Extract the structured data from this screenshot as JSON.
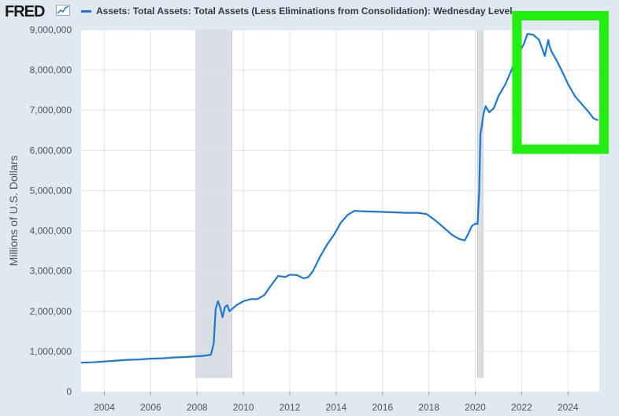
{
  "header": {
    "logo_text": "FRED",
    "legend_label": "Assets: Total Assets: Total Assets (Less Eliminations from Consolidation): Wednesday Level"
  },
  "colors": {
    "line": "#1f77d4",
    "recession": "#d9dee4",
    "highlight": "#22ee11",
    "grid": "#dfe3e8",
    "background": "#e1e9f0"
  },
  "chart_data": {
    "type": "line",
    "title": "",
    "xlabel": "",
    "ylabel": "Millions of U.S. Dollars",
    "xlim": [
      2003.0,
      2025.35
    ],
    "ylim": [
      0,
      9000000
    ],
    "grid": true,
    "x_ticks": [
      "2004",
      "2006",
      "2008",
      "2010",
      "2012",
      "2014",
      "2016",
      "2018",
      "2020",
      "2022",
      "2024"
    ],
    "y_ticks": [
      "0",
      "1,000,000",
      "2,000,000",
      "3,000,000",
      "4,000,000",
      "5,000,000",
      "6,000,000",
      "7,000,000",
      "8,000,000",
      "9,000,000"
    ],
    "recessions": [
      [
        2007.96,
        2009.5
      ],
      [
        2020.1,
        2020.33
      ]
    ],
    "highlight_box": {
      "x": [
        2022.0,
        2025.35
      ],
      "y": [
        6150000,
        9000000
      ],
      "color": "green"
    },
    "series": [
      {
        "x": [
          2003.0,
          2003.5,
          2004.0,
          2004.5,
          2005.0,
          2005.5,
          2006.0,
          2006.5,
          2007.0,
          2007.5,
          2008.0,
          2008.3,
          2008.6,
          2008.72,
          2008.8,
          2008.9,
          2009.0,
          2009.1,
          2009.2,
          2009.3,
          2009.4,
          2009.5,
          2009.7,
          2010.0,
          2010.3,
          2010.6,
          2010.9,
          2011.2,
          2011.5,
          2011.8,
          2012.0,
          2012.3,
          2012.6,
          2012.8,
          2013.0,
          2013.3,
          2013.6,
          2013.9,
          2014.2,
          2014.5,
          2014.8,
          2015.0,
          2015.5,
          2016.0,
          2016.5,
          2017.0,
          2017.5,
          2017.9,
          2018.3,
          2018.7,
          2019.0,
          2019.3,
          2019.55,
          2019.7,
          2019.85,
          2020.0,
          2020.1,
          2020.17,
          2020.22,
          2020.28,
          2020.35,
          2020.45,
          2020.6,
          2020.8,
          2021.0,
          2021.3,
          2021.6,
          2021.9,
          2022.1,
          2022.25,
          2022.5,
          2022.75,
          2023.0,
          2023.15,
          2023.2,
          2023.3,
          2023.5,
          2023.8,
          2024.0,
          2024.3,
          2024.6,
          2024.9,
          2025.1,
          2025.3
        ],
        "y": [
          720000,
          730000,
          750000,
          770000,
          790000,
          800000,
          820000,
          830000,
          850000,
          860000,
          880000,
          890000,
          920000,
          1200000,
          2050000,
          2250000,
          2100000,
          1850000,
          2100000,
          2150000,
          2000000,
          2050000,
          2150000,
          2250000,
          2300000,
          2300000,
          2400000,
          2650000,
          2880000,
          2850000,
          2910000,
          2900000,
          2820000,
          2850000,
          3000000,
          3350000,
          3650000,
          3900000,
          4200000,
          4400000,
          4500000,
          4490000,
          4480000,
          4470000,
          4460000,
          4450000,
          4450000,
          4420000,
          4250000,
          4050000,
          3900000,
          3800000,
          3760000,
          3930000,
          4120000,
          4180000,
          4170000,
          5000000,
          6400000,
          6600000,
          6900000,
          7100000,
          6950000,
          7050000,
          7350000,
          7650000,
          8050000,
          8450000,
          8650000,
          8900000,
          8880000,
          8750000,
          8350000,
          8750000,
          8600000,
          8450000,
          8250000,
          7900000,
          7650000,
          7350000,
          7150000,
          6950000,
          6800000,
          6750000
        ]
      }
    ]
  }
}
